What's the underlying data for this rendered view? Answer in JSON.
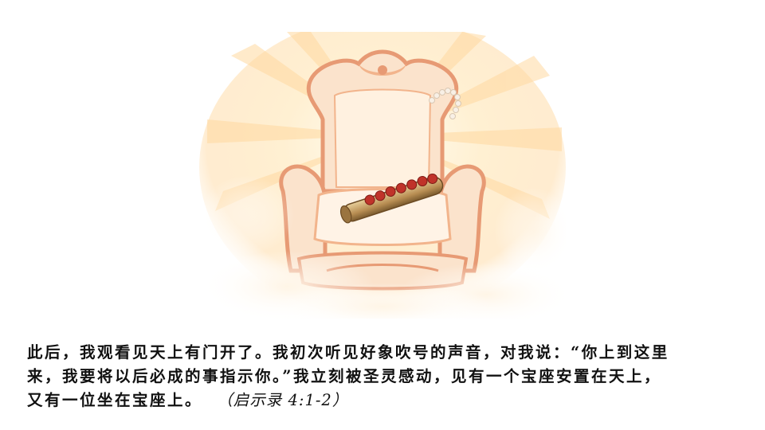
{
  "caption": {
    "line1": "此后，我观看见天上有门开了。我初次听见好象吹号的声音，对我说：“你上到这里",
    "line2": "来，我要将以后必成的事指示你。”我立刻被圣灵感动，见有一个宝座安置在天上，",
    "line3": "又有一位坐在宝座上。",
    "reference": "（启示录 4:1-2）"
  },
  "illustration": {
    "subject": "heavenly-throne-with-scroll",
    "colors": {
      "glow": "#fff3d6",
      "ray": "#ffd9a0",
      "throne": "#f2b48c",
      "throne_shade": "#e79a74",
      "scroll": "#caa36a",
      "seal": "#c0332a"
    }
  }
}
